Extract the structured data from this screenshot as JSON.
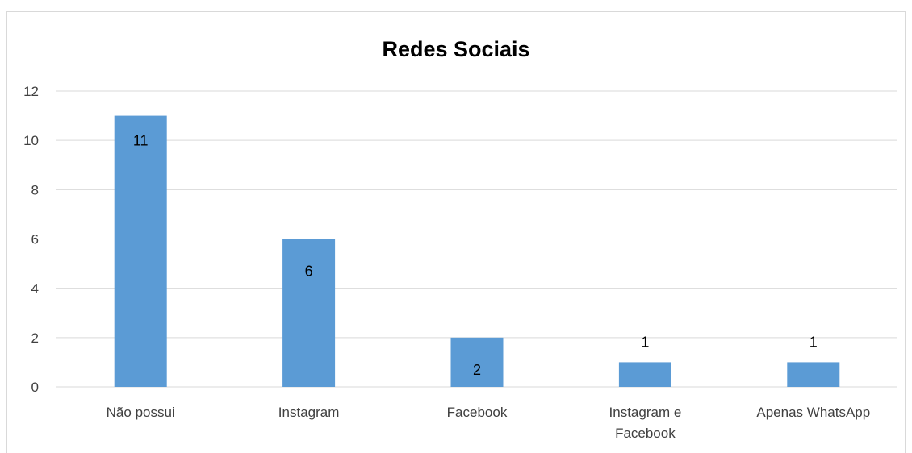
{
  "chart_data": {
    "type": "bar",
    "title": "Redes Sociais",
    "categories": [
      [
        "Não possui"
      ],
      [
        "Instagram"
      ],
      [
        "Facebook"
      ],
      [
        "Instagram e",
        "Facebook"
      ],
      [
        "Apenas WhatsApp"
      ]
    ],
    "values": [
      11,
      6,
      2,
      1,
      1
    ],
    "data_labels": [
      "11",
      "6",
      "2",
      "1",
      "1"
    ],
    "ylim": [
      0,
      12
    ],
    "yticks": [
      "0",
      "2",
      "4",
      "6",
      "8",
      "10",
      "12"
    ],
    "grid": true,
    "legend": "none",
    "bar_color": "#5b9bd5",
    "grid_color": "#d9d9d9"
  }
}
